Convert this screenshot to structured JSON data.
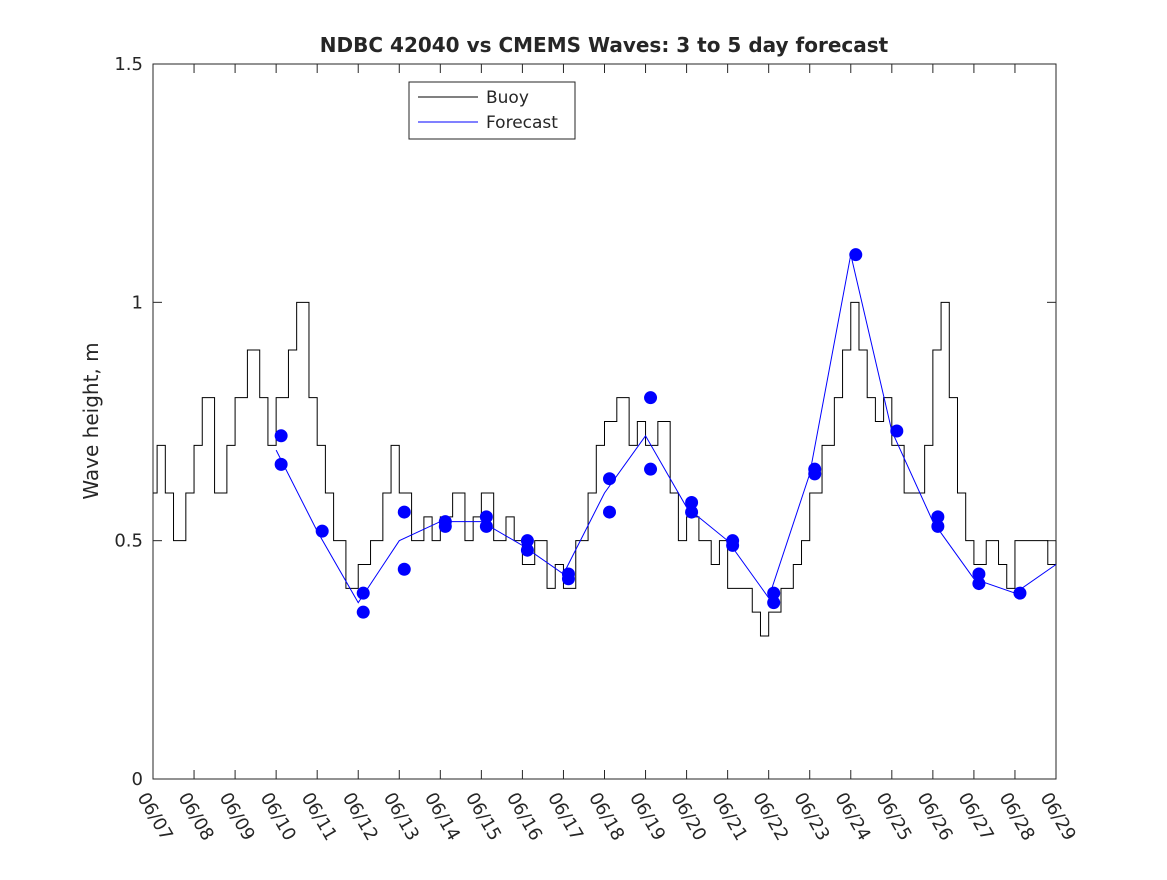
{
  "chart_data": {
    "type": "line",
    "title": "NDBC 42040 vs CMEMS Waves: 3 to 5 day forecast",
    "xlabel": "",
    "ylabel": "Wave height, m",
    "xlim": [
      "06/07",
      "06/29"
    ],
    "ylim": [
      0,
      1.5
    ],
    "x_ticks": [
      "06/07",
      "06/08",
      "06/09",
      "06/10",
      "06/11",
      "06/12",
      "06/13",
      "06/14",
      "06/15",
      "06/16",
      "06/17",
      "06/18",
      "06/19",
      "06/20",
      "06/21",
      "06/22",
      "06/23",
      "06/24",
      "06/25",
      "06/26",
      "06/27",
      "06/28",
      "06/29"
    ],
    "y_ticks": [
      0,
      0.5,
      1,
      1.5
    ],
    "y_tick_labels": [
      "0",
      "0.5",
      "1",
      "1.5"
    ],
    "grid": false,
    "legend": {
      "position": "top-left (inside)",
      "entries": [
        "Buoy",
        "Forecast"
      ]
    },
    "colors": {
      "buoy": "#000000",
      "forecast": "#0000ff"
    },
    "series": [
      {
        "name": "Buoy",
        "x": [
          "06/07",
          "06/07.1",
          "06/07.3",
          "06/07.5",
          "06/07.8",
          "06/08",
          "06/08.2",
          "06/08.5",
          "06/08.8",
          "06/09",
          "06/09.3",
          "06/09.6",
          "06/09.8",
          "06/10",
          "06/10.3",
          "06/10.5",
          "06/10.8",
          "06/11",
          "06/11.2",
          "06/11.4",
          "06/11.7",
          "06/12",
          "06/12.3",
          "06/12.6",
          "06/12.8",
          "06/13",
          "06/13.3",
          "06/13.6",
          "06/13.8",
          "06/14",
          "06/14.3",
          "06/14.6",
          "06/14.8",
          "06/15",
          "06/15.3",
          "06/15.6",
          "06/15.8",
          "06/16",
          "06/16.3",
          "06/16.6",
          "06/16.8",
          "06/17",
          "06/17.3",
          "06/17.6",
          "06/17.8",
          "06/18",
          "06/18.3",
          "06/18.6",
          "06/18.8",
          "06/19",
          "06/19.3",
          "06/19.6",
          "06/19.8",
          "06/20",
          "06/20.3",
          "06/20.6",
          "06/20.8",
          "06/21",
          "06/21.3",
          "06/21.6",
          "06/21.8",
          "06/22",
          "06/22.3",
          "06/22.6",
          "06/22.8",
          "06/23",
          "06/23.3",
          "06/23.6",
          "06/23.8",
          "06/24",
          "06/24.2",
          "06/24.4",
          "06/24.6",
          "06/24.8",
          "06/25",
          "06/25.3",
          "06/25.6",
          "06/25.8",
          "06/26",
          "06/26.2",
          "06/26.4",
          "06/26.6",
          "06/26.8",
          "06/27",
          "06/27.3",
          "06/27.6",
          "06/27.8",
          "06/28",
          "06/28.3",
          "06/28.6",
          "06/28.8",
          "06/29"
        ],
        "values": [
          0.6,
          0.7,
          0.6,
          0.5,
          0.6,
          0.7,
          0.8,
          0.6,
          0.7,
          0.8,
          0.9,
          0.8,
          0.7,
          0.8,
          0.9,
          1.0,
          0.8,
          0.7,
          0.6,
          0.5,
          0.4,
          0.45,
          0.5,
          0.6,
          0.7,
          0.6,
          0.5,
          0.55,
          0.5,
          0.55,
          0.6,
          0.5,
          0.55,
          0.6,
          0.5,
          0.55,
          0.5,
          0.45,
          0.5,
          0.4,
          0.45,
          0.4,
          0.5,
          0.6,
          0.7,
          0.75,
          0.8,
          0.7,
          0.75,
          0.7,
          0.75,
          0.6,
          0.5,
          0.55,
          0.5,
          0.45,
          0.5,
          0.4,
          0.4,
          0.35,
          0.3,
          0.35,
          0.4,
          0.45,
          0.5,
          0.6,
          0.7,
          0.8,
          0.9,
          1.0,
          0.9,
          0.8,
          0.75,
          0.8,
          0.7,
          0.6,
          0.6,
          0.7,
          0.9,
          1.0,
          0.8,
          0.6,
          0.5,
          0.45,
          0.5,
          0.45,
          0.4,
          0.5,
          0.5,
          0.5,
          0.45,
          0.5
        ]
      },
      {
        "name": "Forecast",
        "x": [
          "06/10",
          "06/11",
          "06/12",
          "06/13",
          "06/14",
          "06/15",
          "06/16",
          "06/17",
          "06/18",
          "06/19",
          "06/20",
          "06/21",
          "06/22",
          "06/23",
          "06/24",
          "06/25",
          "06/26",
          "06/27",
          "06/28",
          "06/29"
        ],
        "values": [
          0.69,
          0.52,
          0.37,
          0.5,
          0.54,
          0.54,
          0.49,
          0.43,
          0.6,
          0.72,
          0.57,
          0.5,
          0.38,
          0.64,
          1.1,
          0.73,
          0.54,
          0.42,
          0.39,
          0.45
        ]
      }
    ],
    "forecast_markers": [
      {
        "x": "06/10",
        "y": 0.72
      },
      {
        "x": "06/10",
        "y": 0.66
      },
      {
        "x": "06/11",
        "y": 0.52
      },
      {
        "x": "06/12",
        "y": 0.39
      },
      {
        "x": "06/12",
        "y": 0.35
      },
      {
        "x": "06/13",
        "y": 0.56
      },
      {
        "x": "06/13",
        "y": 0.44
      },
      {
        "x": "06/14",
        "y": 0.54
      },
      {
        "x": "06/14",
        "y": 0.53
      },
      {
        "x": "06/15",
        "y": 0.55
      },
      {
        "x": "06/15",
        "y": 0.53
      },
      {
        "x": "06/16",
        "y": 0.5
      },
      {
        "x": "06/16",
        "y": 0.48
      },
      {
        "x": "06/17",
        "y": 0.43
      },
      {
        "x": "06/17",
        "y": 0.42
      },
      {
        "x": "06/18",
        "y": 0.63
      },
      {
        "x": "06/18",
        "y": 0.56
      },
      {
        "x": "06/19",
        "y": 0.8
      },
      {
        "x": "06/19",
        "y": 0.65
      },
      {
        "x": "06/20",
        "y": 0.58
      },
      {
        "x": "06/20",
        "y": 0.56
      },
      {
        "x": "06/21",
        "y": 0.5
      },
      {
        "x": "06/21",
        "y": 0.49
      },
      {
        "x": "06/22",
        "y": 0.39
      },
      {
        "x": "06/22",
        "y": 0.37
      },
      {
        "x": "06/23",
        "y": 0.65
      },
      {
        "x": "06/23",
        "y": 0.64
      },
      {
        "x": "06/24",
        "y": 1.1
      },
      {
        "x": "06/25",
        "y": 0.73
      },
      {
        "x": "06/26",
        "y": 0.55
      },
      {
        "x": "06/26",
        "y": 0.53
      },
      {
        "x": "06/27",
        "y": 0.43
      },
      {
        "x": "06/27",
        "y": 0.41
      },
      {
        "x": "06/28",
        "y": 0.39
      }
    ]
  }
}
